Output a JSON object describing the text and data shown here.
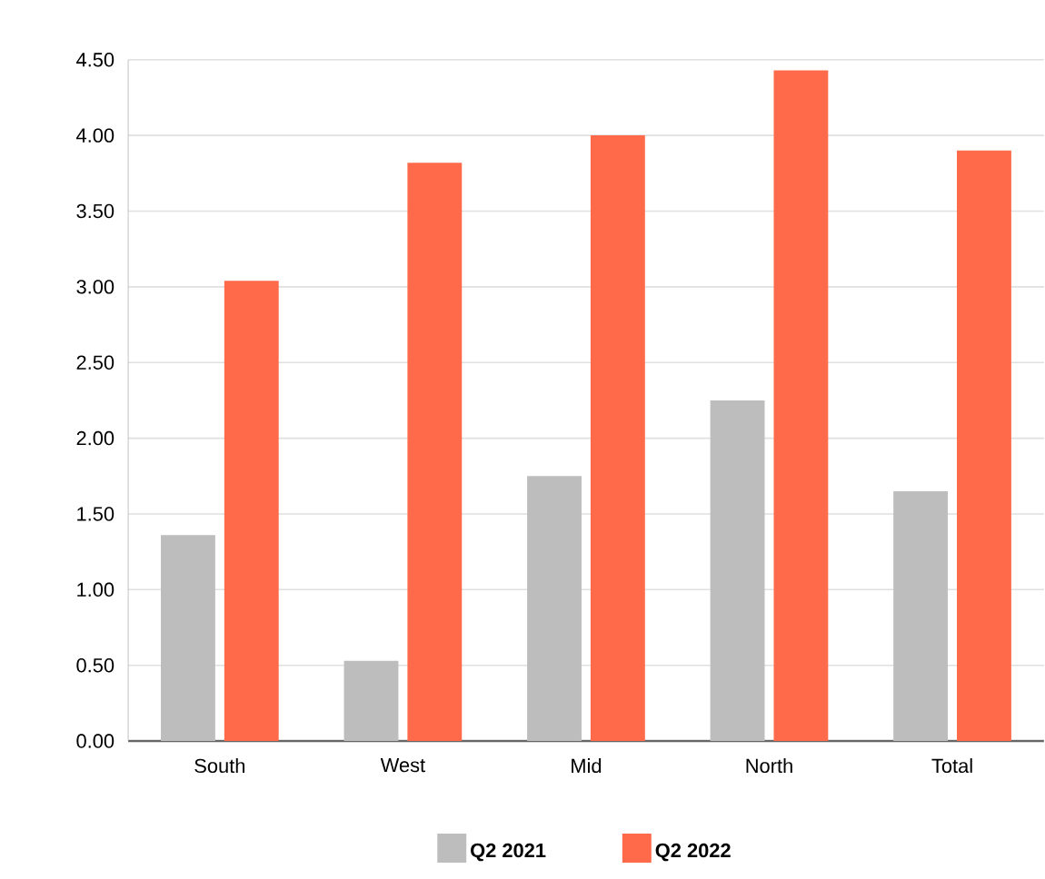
{
  "chart_data": {
    "type": "bar",
    "categories": [
      "South",
      "West",
      "Mid",
      "North",
      "Total"
    ],
    "series": [
      {
        "name": "Q2 2021",
        "color": "#bdbdbd",
        "values": [
          1.36,
          0.53,
          1.75,
          2.25,
          1.65
        ]
      },
      {
        "name": "Q2 2022",
        "color": "#ff6b4a",
        "values": [
          3.04,
          3.82,
          4.0,
          4.43,
          3.9
        ]
      }
    ],
    "ylim": [
      0,
      4.5
    ],
    "yticks": [
      {
        "value": 0,
        "label": "0.00"
      },
      {
        "value": 0.5,
        "label": "0.50"
      },
      {
        "value": 1,
        "label": "1.00"
      },
      {
        "value": 1.5,
        "label": "1.50"
      },
      {
        "value": 2,
        "label": "2.00"
      },
      {
        "value": 2.5,
        "label": "2.50"
      },
      {
        "value": 3,
        "label": "3.00"
      },
      {
        "value": 3.5,
        "label": "3.50"
      },
      {
        "value": 4,
        "label": "4.00"
      },
      {
        "value": 4.5,
        "label": "4.50"
      }
    ],
    "grid": "y",
    "legend": "bottom"
  }
}
